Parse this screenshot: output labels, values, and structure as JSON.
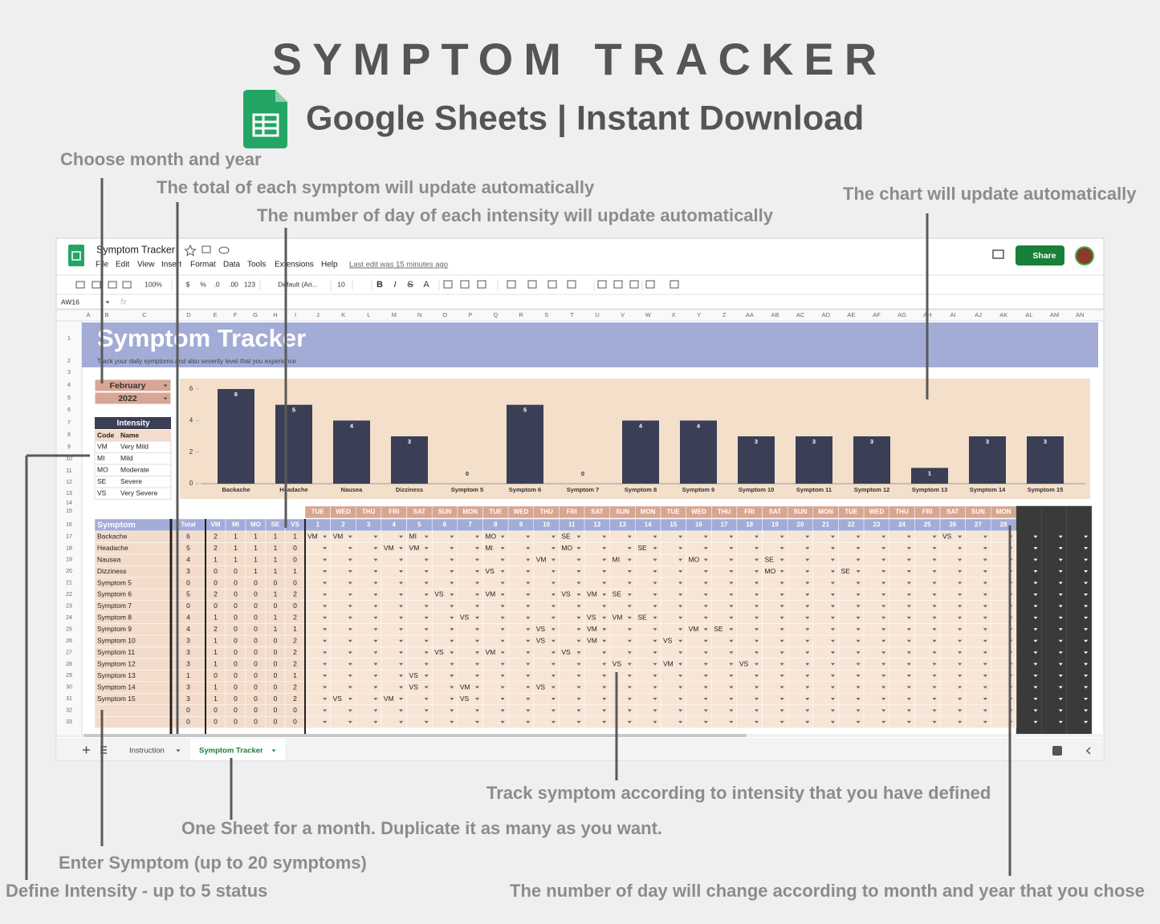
{
  "header": {
    "title": "SYMPTOM TRACKER",
    "subtitle": "Google Sheets | Instant Download"
  },
  "callouts": [
    "Choose month and year",
    "The total of each symptom will update automatically",
    "The number of day of each intensity will update automatically",
    "The chart will update automatically",
    "Track symptom according to intensity that you have defined",
    "One Sheet for a month. Duplicate it as many as you want.",
    "Enter Symptom (up to 20 symptoms)",
    "Define Intensity - up to 5 status",
    "The number of day will change according to month and year that you chose"
  ],
  "app": {
    "doc_title": "Symptom Tracker",
    "menus": [
      "File",
      "Edit",
      "View",
      "Insert",
      "Format",
      "Data",
      "Tools",
      "Extensions",
      "Help"
    ],
    "last_edit": "Last edit was 15 minutes ago",
    "share": "Share",
    "cell_ref": "AW16",
    "formula_icon": "fx",
    "toolbar": [
      "100%",
      "$",
      "%",
      ".0",
      ".00",
      "123",
      "Default (Ari...",
      "10",
      "B",
      "I",
      "S",
      "A"
    ]
  },
  "grid": {
    "columns": [
      "A",
      "B",
      "C",
      "D",
      "E",
      "F",
      "G",
      "H",
      "I",
      "J",
      "K",
      "L",
      "M",
      "N",
      "O",
      "P",
      "Q",
      "R",
      "S",
      "T",
      "U",
      "V",
      "W",
      "X",
      "Y",
      "Z",
      "AA",
      "AB",
      "AC",
      "AD",
      "AE",
      "AF",
      "AG",
      "AH",
      "AI",
      "AJ",
      "AK",
      "AL",
      "AM",
      "AN"
    ],
    "rows": [
      1,
      2,
      3,
      4,
      5,
      6,
      7,
      8,
      9,
      10,
      11,
      12,
      13,
      14,
      15,
      16,
      17,
      18,
      19,
      20,
      21,
      22,
      23,
      24,
      25,
      26,
      27,
      28,
      29,
      30,
      31,
      32,
      33
    ]
  },
  "sheet": {
    "title": "Symptom Tracker",
    "subtitle": "Track your daily symptoms and also severity level that you experience",
    "month": "February",
    "year": "2022"
  },
  "intensity": {
    "header": "Intensity",
    "columns": [
      "Code",
      "Name"
    ],
    "rows": [
      [
        "VM",
        "Very Mild"
      ],
      [
        "MI",
        "Mild"
      ],
      [
        "MO",
        "Moderate"
      ],
      [
        "SE",
        "Severe"
      ],
      [
        "VS",
        "Very Severe"
      ]
    ]
  },
  "chart_data": {
    "type": "bar",
    "categories": [
      "Backache",
      "Headache",
      "Nausea",
      "Dizziness",
      "Symptom 5",
      "Symptom 6",
      "Symptom 7",
      "Symptom 8",
      "Symptom 9",
      "Symptom 10",
      "Symptom 11",
      "Symptom 12",
      "Symptom 13",
      "Symptom 14",
      "Symptom 15"
    ],
    "values": [
      6,
      5,
      4,
      3,
      0,
      5,
      0,
      4,
      4,
      3,
      3,
      3,
      1,
      3,
      3
    ],
    "color": "#3b3f55",
    "ylim": [
      0,
      6
    ],
    "yticks": [
      0,
      2,
      4,
      6
    ]
  },
  "tracker": {
    "columns": [
      "Symptom",
      "Total",
      "VM",
      "MI",
      "MO",
      "SE",
      "VS"
    ],
    "weekdays": [
      "TUE",
      "WED",
      "THU",
      "FRI",
      "SAT",
      "SUN",
      "MON",
      "TUE",
      "WED",
      "THU",
      "FRI",
      "SAT",
      "SUN",
      "MON",
      "TUE",
      "WED",
      "THU",
      "FRI",
      "SAT",
      "SUN",
      "MON",
      "TUE",
      "WED",
      "THU",
      "FRI",
      "SAT",
      "SUN",
      "MON"
    ],
    "days": [
      1,
      2,
      3,
      4,
      5,
      6,
      7,
      8,
      9,
      10,
      11,
      12,
      13,
      14,
      15,
      16,
      17,
      18,
      19,
      20,
      21,
      22,
      23,
      24,
      25,
      26,
      27,
      28
    ],
    "rows": [
      {
        "name": "Backache",
        "counts": [
          6,
          2,
          1,
          1,
          1,
          1
        ],
        "entries": [
          "VM",
          "VM",
          null,
          null,
          "MI",
          null,
          null,
          "MO",
          null,
          null,
          "SE",
          null,
          null,
          null,
          null,
          null,
          null,
          null,
          null,
          null,
          null,
          null,
          null,
          null,
          null,
          "VS",
          null,
          null
        ]
      },
      {
        "name": "Headache",
        "counts": [
          5,
          2,
          1,
          1,
          1,
          0
        ],
        "entries": [
          null,
          null,
          null,
          "VM",
          "VM",
          null,
          null,
          "MI",
          null,
          null,
          "MO",
          null,
          null,
          "SE",
          null,
          null,
          null,
          null,
          null,
          null,
          null,
          null,
          null,
          null,
          null,
          null,
          null,
          null
        ]
      },
      {
        "name": "Nausea",
        "counts": [
          4,
          1,
          1,
          1,
          1,
          0
        ],
        "entries": [
          null,
          null,
          null,
          null,
          null,
          null,
          null,
          null,
          null,
          "VM",
          null,
          null,
          "MI",
          null,
          null,
          "MO",
          null,
          null,
          "SE",
          null,
          null,
          null,
          null,
          null,
          null,
          null,
          null,
          null
        ]
      },
      {
        "name": "Dizziness",
        "counts": [
          3,
          0,
          0,
          1,
          1,
          1
        ],
        "entries": [
          null,
          null,
          null,
          null,
          null,
          null,
          null,
          "VS",
          null,
          null,
          null,
          null,
          null,
          null,
          null,
          null,
          null,
          null,
          "MO",
          null,
          null,
          "SE",
          null,
          null,
          null,
          null,
          null,
          null
        ]
      },
      {
        "name": "Symptom 5",
        "counts": [
          0,
          0,
          0,
          0,
          0,
          0
        ],
        "entries": [
          null,
          null,
          null,
          null,
          null,
          null,
          null,
          null,
          null,
          null,
          null,
          null,
          null,
          null,
          null,
          null,
          null,
          null,
          null,
          null,
          null,
          null,
          null,
          null,
          null,
          null,
          null,
          null
        ]
      },
      {
        "name": "Symptom 6",
        "counts": [
          5,
          2,
          0,
          0,
          1,
          2
        ],
        "entries": [
          null,
          null,
          null,
          null,
          null,
          "VS",
          null,
          "VM",
          null,
          null,
          "VS",
          "VM",
          "SE",
          null,
          null,
          null,
          null,
          null,
          null,
          null,
          null,
          null,
          null,
          null,
          null,
          null,
          null,
          null
        ]
      },
      {
        "name": "Symptom 7",
        "counts": [
          0,
          0,
          0,
          0,
          0,
          0
        ],
        "entries": [
          null,
          null,
          null,
          null,
          null,
          null,
          null,
          null,
          null,
          null,
          null,
          null,
          null,
          null,
          null,
          null,
          null,
          null,
          null,
          null,
          null,
          null,
          null,
          null,
          null,
          null,
          null,
          null
        ]
      },
      {
        "name": "Symptom 8",
        "counts": [
          4,
          1,
          0,
          0,
          1,
          2
        ],
        "entries": [
          null,
          null,
          null,
          null,
          null,
          null,
          "VS",
          null,
          null,
          null,
          null,
          "VS",
          "VM",
          "SE",
          null,
          null,
          null,
          null,
          null,
          null,
          null,
          null,
          null,
          null,
          null,
          null,
          null,
          null
        ]
      },
      {
        "name": "Symptom 9",
        "counts": [
          4,
          2,
          0,
          0,
          1,
          1
        ],
        "entries": [
          null,
          null,
          null,
          null,
          null,
          null,
          null,
          null,
          null,
          "VS",
          null,
          "VM",
          null,
          null,
          null,
          "VM",
          "SE",
          null,
          null,
          null,
          null,
          null,
          null,
          null,
          null,
          null,
          null,
          null
        ]
      },
      {
        "name": "Symptom 10",
        "counts": [
          3,
          1,
          0,
          0,
          0,
          2
        ],
        "entries": [
          null,
          null,
          null,
          null,
          null,
          null,
          null,
          null,
          null,
          "VS",
          null,
          "VM",
          null,
          null,
          "VS",
          null,
          null,
          null,
          null,
          null,
          null,
          null,
          null,
          null,
          null,
          null,
          null,
          null
        ]
      },
      {
        "name": "Symptom 11",
        "counts": [
          3,
          1,
          0,
          0,
          0,
          2
        ],
        "entries": [
          null,
          null,
          null,
          null,
          null,
          "VS",
          null,
          "VM",
          null,
          null,
          "VS",
          null,
          null,
          null,
          null,
          null,
          null,
          null,
          null,
          null,
          null,
          null,
          null,
          null,
          null,
          null,
          null,
          null
        ]
      },
      {
        "name": "Symptom 12",
        "counts": [
          3,
          1,
          0,
          0,
          0,
          2
        ],
        "entries": [
          null,
          null,
          null,
          null,
          null,
          null,
          null,
          null,
          null,
          null,
          null,
          null,
          "VS",
          null,
          "VM",
          null,
          null,
          "VS",
          null,
          null,
          null,
          null,
          null,
          null,
          null,
          null,
          null,
          null
        ]
      },
      {
        "name": "Symptom 13",
        "counts": [
          1,
          0,
          0,
          0,
          0,
          1
        ],
        "entries": [
          null,
          null,
          null,
          null,
          "VS",
          null,
          null,
          null,
          null,
          null,
          null,
          null,
          null,
          null,
          null,
          null,
          null,
          null,
          null,
          null,
          null,
          null,
          null,
          null,
          null,
          null,
          null,
          null
        ]
      },
      {
        "name": "Symptom 14",
        "counts": [
          3,
          1,
          0,
          0,
          0,
          2
        ],
        "entries": [
          null,
          null,
          null,
          null,
          "VS",
          null,
          "VM",
          null,
          null,
          "VS",
          null,
          null,
          null,
          null,
          null,
          null,
          null,
          null,
          null,
          null,
          null,
          null,
          null,
          null,
          null,
          null,
          null,
          null
        ]
      },
      {
        "name": "Symptom 15",
        "counts": [
          3,
          1,
          0,
          0,
          0,
          2
        ],
        "entries": [
          null,
          "VS",
          null,
          "VM",
          null,
          null,
          "VS",
          null,
          null,
          null,
          null,
          null,
          null,
          null,
          null,
          null,
          null,
          null,
          null,
          null,
          null,
          null,
          null,
          null,
          null,
          null,
          null,
          null
        ]
      },
      {
        "name": null,
        "counts": [
          0,
          0,
          0,
          0,
          0,
          0
        ],
        "entries": [
          null,
          null,
          null,
          null,
          null,
          null,
          null,
          null,
          null,
          null,
          null,
          null,
          null,
          null,
          null,
          null,
          null,
          null,
          null,
          null,
          null,
          null,
          null,
          null,
          null,
          null,
          null,
          null
        ]
      },
      {
        "name": null,
        "counts": [
          0,
          0,
          0,
          0,
          0,
          0
        ],
        "entries": [
          null,
          null,
          null,
          null,
          null,
          null,
          null,
          null,
          null,
          null,
          null,
          null,
          null,
          null,
          null,
          null,
          null,
          null,
          null,
          null,
          null,
          null,
          null,
          null,
          null,
          null,
          null,
          null
        ]
      }
    ]
  },
  "tabs": [
    "Instruction",
    "Symptom Tracker"
  ]
}
